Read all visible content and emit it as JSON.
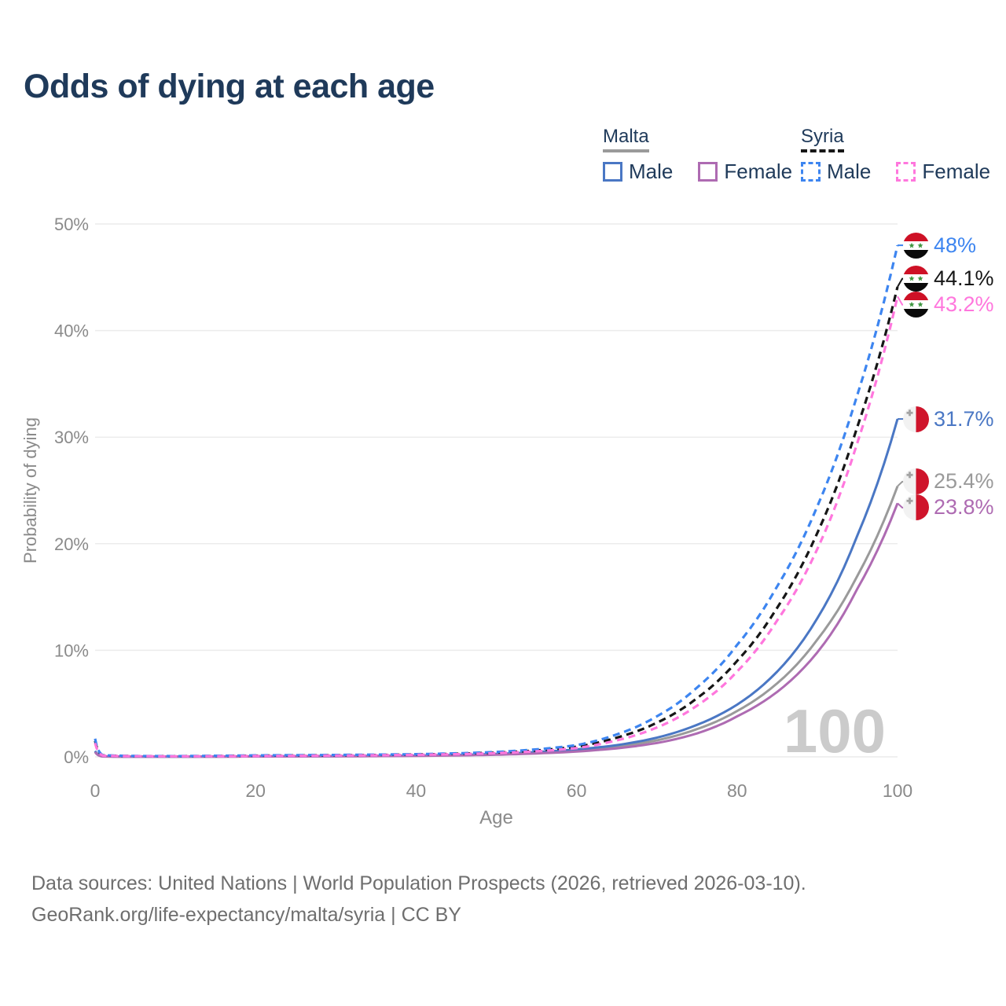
{
  "header": {
    "title": "Odds of dying at each age"
  },
  "legend": {
    "malta": {
      "label": "Malta",
      "male": "Male",
      "female": "Female"
    },
    "syria": {
      "label": "Syria",
      "male": "Male",
      "female": "Female"
    }
  },
  "watermark": "100",
  "footer": {
    "line1": "Data sources: United Nations | World Population Prospects (2026, retrieved 2026-03-10).",
    "line2": "GeoRank.org/life-expectancy/malta/syria | CC BY"
  },
  "colors": {
    "title": "#1f3a5a",
    "axis_text": "#8a8a8a",
    "grid": "#ececec",
    "watermark": "#cbcbcb",
    "footer_text": "#6e6e6e",
    "malta_male": "#4a77c4",
    "malta_female": "#ae6bb2",
    "malta_both": "#9a9a9a",
    "syria_male": "#3d85f0",
    "syria_female": "#ff77dd",
    "syria_both": "#161616"
  },
  "chart_data": {
    "type": "line",
    "title": "Odds of dying at each age",
    "xlabel": "Age",
    "ylabel": "Probability of dying",
    "xlim": [
      0,
      100
    ],
    "ylim": [
      0,
      50
    ],
    "x_ticks": [
      0,
      20,
      40,
      60,
      80,
      100
    ],
    "y_tick_values": [
      0,
      10,
      20,
      30,
      40,
      50
    ],
    "y_ticks": [
      "0%",
      "10%",
      "20%",
      "30%",
      "40%",
      "50%"
    ],
    "grid": "horizontal",
    "legend_position": "top-right",
    "x": [
      0,
      1,
      5,
      10,
      15,
      20,
      25,
      30,
      35,
      40,
      45,
      50,
      55,
      60,
      65,
      70,
      75,
      80,
      85,
      90,
      95,
      100
    ],
    "series": [
      {
        "id": "malta-both",
        "name": "Malta (both sexes)",
        "country": "Malta",
        "style": "solid",
        "color": "malta_both",
        "flag": "malta",
        "end_label": "25.4%",
        "end_value": 25.4,
        "values": [
          0.5,
          0.035,
          0.018,
          0.018,
          0.025,
          0.04,
          0.05,
          0.06,
          0.08,
          0.1,
          0.15,
          0.24,
          0.38,
          0.6,
          0.95,
          1.55,
          2.6,
          4.3,
          6.9,
          11.0,
          17.0,
          25.4
        ]
      },
      {
        "id": "malta-male",
        "name": "Malta male",
        "country": "Malta",
        "style": "solid",
        "color": "malta_male",
        "flag": "malta",
        "end_label": "31.7%",
        "end_value": 31.7,
        "values": [
          0.55,
          0.04,
          0.02,
          0.02,
          0.03,
          0.05,
          0.06,
          0.07,
          0.09,
          0.12,
          0.18,
          0.28,
          0.45,
          0.7,
          1.1,
          1.8,
          3.0,
          4.9,
          8.0,
          13.0,
          20.8,
          31.7
        ]
      },
      {
        "id": "malta-female",
        "name": "Malta female",
        "country": "Malta",
        "style": "solid",
        "color": "malta_female",
        "flag": "malta",
        "end_label": "23.8%",
        "end_value": 23.8,
        "values": [
          0.45,
          0.03,
          0.015,
          0.015,
          0.02,
          0.03,
          0.04,
          0.05,
          0.07,
          0.09,
          0.13,
          0.2,
          0.32,
          0.5,
          0.8,
          1.3,
          2.2,
          3.8,
          6.1,
          9.8,
          15.8,
          23.8
        ]
      },
      {
        "id": "syria-both",
        "name": "Syria (both sexes)",
        "country": "Syria",
        "style": "dashed",
        "color": "syria_both",
        "flag": "syria",
        "end_label": "44.1%",
        "end_value": 44.1,
        "values": [
          1.5,
          0.13,
          0.07,
          0.06,
          0.08,
          0.11,
          0.13,
          0.15,
          0.18,
          0.22,
          0.29,
          0.4,
          0.6,
          0.95,
          1.8,
          3.2,
          5.5,
          9.0,
          14.0,
          21.0,
          31.0,
          44.1
        ]
      },
      {
        "id": "syria-male",
        "name": "Syria male",
        "country": "Syria",
        "style": "dashed",
        "color": "syria_male",
        "flag": "syria",
        "end_label": "48%",
        "end_value": 48,
        "values": [
          1.7,
          0.15,
          0.08,
          0.07,
          0.1,
          0.14,
          0.16,
          0.18,
          0.21,
          0.25,
          0.33,
          0.46,
          0.7,
          1.1,
          2.1,
          3.8,
          6.5,
          10.5,
          16.0,
          23.5,
          34.0,
          48.0
        ]
      },
      {
        "id": "syria-female",
        "name": "Syria female",
        "country": "Syria",
        "style": "dashed",
        "color": "syria_female",
        "flag": "syria",
        "end_label": "43.2%",
        "end_value": 43.2,
        "values": [
          1.3,
          0.11,
          0.06,
          0.05,
          0.06,
          0.08,
          0.1,
          0.12,
          0.15,
          0.19,
          0.25,
          0.35,
          0.52,
          0.82,
          1.55,
          2.75,
          4.8,
          8.0,
          12.8,
          19.5,
          29.5,
          43.2
        ]
      }
    ]
  }
}
